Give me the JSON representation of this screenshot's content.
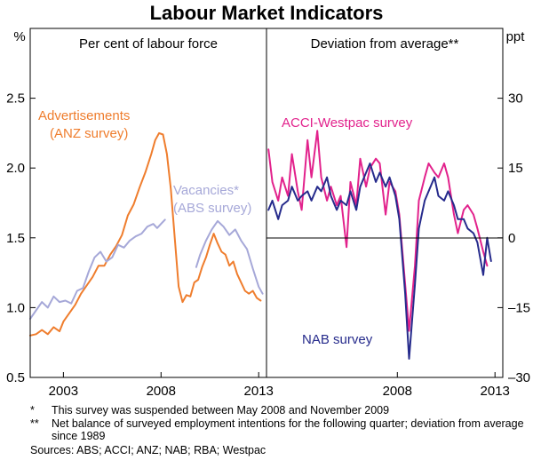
{
  "chart_data": {
    "type": "line",
    "title": "Labour Market Indicators",
    "left_panel": {
      "subtitle": "Per cent of labour force",
      "unit": "%",
      "ylim": [
        0.5,
        3.0
      ],
      "yticks": [
        "0.5",
        "1.0",
        "1.5",
        "2.0",
        "2.5"
      ],
      "xlim": [
        2001.3,
        2013.4
      ],
      "xticks": [
        2003,
        2008,
        2013
      ],
      "series": [
        {
          "name": "Advertisements (ANZ survey)",
          "label_lines": [
            "Advertisements",
            "(ANZ survey)"
          ],
          "color": "#ef7d2d",
          "segments": [
            [
              [
                2001.3,
                0.8
              ],
              [
                2001.6,
                0.81
              ],
              [
                2001.9,
                0.84
              ],
              [
                2002.2,
                0.81
              ],
              [
                2002.5,
                0.86
              ],
              [
                2002.8,
                0.83
              ],
              [
                2003.0,
                0.9
              ],
              [
                2003.3,
                0.96
              ],
              [
                2003.6,
                1.02
              ],
              [
                2003.9,
                1.1
              ],
              [
                2004.2,
                1.16
              ],
              [
                2004.5,
                1.22
              ],
              [
                2004.8,
                1.3
              ],
              [
                2005.1,
                1.3
              ],
              [
                2005.4,
                1.38
              ],
              [
                2005.7,
                1.44
              ],
              [
                2006.0,
                1.52
              ],
              [
                2006.3,
                1.66
              ],
              [
                2006.6,
                1.74
              ],
              [
                2006.9,
                1.86
              ],
              [
                2007.2,
                1.97
              ],
              [
                2007.5,
                2.1
              ],
              [
                2007.7,
                2.2
              ],
              [
                2007.9,
                2.25
              ],
              [
                2008.1,
                2.24
              ],
              [
                2008.3,
                2.1
              ],
              [
                2008.5,
                1.85
              ],
              [
                2008.7,
                1.5
              ],
              [
                2008.9,
                1.15
              ],
              [
                2009.1,
                1.04
              ],
              [
                2009.3,
                1.09
              ],
              [
                2009.5,
                1.08
              ],
              [
                2009.7,
                1.18
              ],
              [
                2009.9,
                1.2
              ],
              [
                2010.1,
                1.29
              ],
              [
                2010.3,
                1.36
              ],
              [
                2010.5,
                1.45
              ],
              [
                2010.7,
                1.53
              ],
              [
                2010.9,
                1.46
              ],
              [
                2011.1,
                1.4
              ],
              [
                2011.3,
                1.38
              ],
              [
                2011.5,
                1.3
              ],
              [
                2011.7,
                1.33
              ],
              [
                2011.9,
                1.24
              ],
              [
                2012.1,
                1.18
              ],
              [
                2012.3,
                1.12
              ],
              [
                2012.5,
                1.1
              ],
              [
                2012.7,
                1.12
              ],
              [
                2012.9,
                1.07
              ],
              [
                2013.1,
                1.05
              ]
            ]
          ]
        },
        {
          "name": "Vacancies* (ABS survey)",
          "label_lines": [
            "Vacancies*",
            "(ABS survey)"
          ],
          "color": "#a6a8d8",
          "segments": [
            [
              [
                2001.3,
                0.92
              ],
              [
                2001.6,
                0.98
              ],
              [
                2001.9,
                1.04
              ],
              [
                2002.2,
                1.0
              ],
              [
                2002.5,
                1.08
              ],
              [
                2002.8,
                1.04
              ],
              [
                2003.1,
                1.05
              ],
              [
                2003.4,
                1.03
              ],
              [
                2003.7,
                1.12
              ],
              [
                2004.0,
                1.14
              ],
              [
                2004.3,
                1.26
              ],
              [
                2004.6,
                1.36
              ],
              [
                2004.9,
                1.4
              ],
              [
                2005.2,
                1.33
              ],
              [
                2005.5,
                1.36
              ],
              [
                2005.8,
                1.45
              ],
              [
                2006.1,
                1.43
              ],
              [
                2006.4,
                1.48
              ],
              [
                2006.7,
                1.51
              ],
              [
                2007.0,
                1.53
              ],
              [
                2007.3,
                1.58
              ],
              [
                2007.6,
                1.6
              ],
              [
                2007.8,
                1.57
              ],
              [
                2008.0,
                1.6
              ],
              [
                2008.2,
                1.63
              ]
            ],
            [
              [
                2009.8,
                1.29
              ],
              [
                2010.0,
                1.38
              ],
              [
                2010.3,
                1.48
              ],
              [
                2010.6,
                1.56
              ],
              [
                2010.9,
                1.62
              ],
              [
                2011.2,
                1.58
              ],
              [
                2011.5,
                1.52
              ],
              [
                2011.8,
                1.56
              ],
              [
                2012.1,
                1.48
              ],
              [
                2012.4,
                1.42
              ],
              [
                2012.7,
                1.28
              ],
              [
                2013.0,
                1.15
              ],
              [
                2013.2,
                1.1
              ]
            ]
          ]
        }
      ]
    },
    "right_panel": {
      "subtitle": "Deviation from average**",
      "unit": "ppt",
      "ylim": [
        -30,
        45
      ],
      "yticks": [
        "-30",
        "-15",
        "0",
        "15",
        "30"
      ],
      "xlim": [
        2001.3,
        2013.4
      ],
      "xticks": [
        2008,
        2013
      ],
      "series": [
        {
          "name": "ACCI-Westpac survey",
          "label_lines": [
            "ACCI-Westpac survey"
          ],
          "color": "#e2228c",
          "segments": [
            [
              [
                2001.4,
                19
              ],
              [
                2001.6,
                12
              ],
              [
                2001.9,
                8
              ],
              [
                2002.1,
                13
              ],
              [
                2002.4,
                9
              ],
              [
                2002.6,
                18
              ],
              [
                2002.9,
                10
              ],
              [
                2003.1,
                6
              ],
              [
                2003.4,
                21
              ],
              [
                2003.6,
                13
              ],
              [
                2003.9,
                23
              ],
              [
                2004.1,
                13
              ],
              [
                2004.4,
                8
              ],
              [
                2004.6,
                11
              ],
              [
                2004.9,
                7
              ],
              [
                2005.1,
                9
              ],
              [
                2005.4,
                -2
              ],
              [
                2005.6,
                12
              ],
              [
                2005.9,
                7
              ],
              [
                2006.1,
                17
              ],
              [
                2006.4,
                11
              ],
              [
                2006.6,
                15
              ],
              [
                2006.9,
                17
              ],
              [
                2007.1,
                16
              ],
              [
                2007.4,
                5
              ],
              [
                2007.6,
                12
              ],
              [
                2007.9,
                10
              ],
              [
                2008.1,
                5
              ],
              [
                2008.4,
                -10
              ],
              [
                2008.6,
                -20
              ],
              [
                2008.9,
                -6
              ],
              [
                2009.1,
                8
              ],
              [
                2009.4,
                13
              ],
              [
                2009.6,
                16
              ],
              [
                2009.9,
                14
              ],
              [
                2010.1,
                13
              ],
              [
                2010.4,
                16
              ],
              [
                2010.6,
                13
              ],
              [
                2010.9,
                5
              ],
              [
                2011.1,
                1
              ],
              [
                2011.4,
                6
              ],
              [
                2011.6,
                7
              ],
              [
                2011.9,
                5
              ],
              [
                2012.1,
                2
              ],
              [
                2012.4,
                -3
              ],
              [
                2012.6,
                -6
              ]
            ]
          ]
        },
        {
          "name": "NAB survey",
          "label_lines": [
            "NAB survey"
          ],
          "color": "#262b8c",
          "segments": [
            [
              [
                2001.4,
                6
              ],
              [
                2001.6,
                8
              ],
              [
                2001.9,
                4
              ],
              [
                2002.1,
                7
              ],
              [
                2002.4,
                8
              ],
              [
                2002.6,
                11
              ],
              [
                2002.9,
                8
              ],
              [
                2003.1,
                9
              ],
              [
                2003.4,
                10
              ],
              [
                2003.6,
                8
              ],
              [
                2003.9,
                11
              ],
              [
                2004.1,
                10
              ],
              [
                2004.4,
                13
              ],
              [
                2004.6,
                9
              ],
              [
                2004.9,
                6
              ],
              [
                2005.1,
                8
              ],
              [
                2005.4,
                7
              ],
              [
                2005.6,
                10
              ],
              [
                2005.9,
                6
              ],
              [
                2006.1,
                11
              ],
              [
                2006.4,
                14
              ],
              [
                2006.6,
                16
              ],
              [
                2006.9,
                12
              ],
              [
                2007.1,
                14
              ],
              [
                2007.4,
                11
              ],
              [
                2007.6,
                13
              ],
              [
                2007.9,
                9
              ],
              [
                2008.1,
                4
              ],
              [
                2008.4,
                -12
              ],
              [
                2008.6,
                -26
              ],
              [
                2008.9,
                -10
              ],
              [
                2009.1,
                2
              ],
              [
                2009.4,
                8
              ],
              [
                2009.6,
                10
              ],
              [
                2009.9,
                13
              ],
              [
                2010.1,
                9
              ],
              [
                2010.4,
                8
              ],
              [
                2010.6,
                10
              ],
              [
                2010.9,
                7
              ],
              [
                2011.1,
                4
              ],
              [
                2011.4,
                4
              ],
              [
                2011.6,
                2
              ],
              [
                2011.9,
                1
              ],
              [
                2012.1,
                -1
              ],
              [
                2012.4,
                -8
              ],
              [
                2012.6,
                0
              ],
              [
                2012.8,
                -5
              ]
            ]
          ]
        }
      ]
    }
  },
  "notes": [
    {
      "mark": "*",
      "text": "This survey was suspended between May 2008 and November 2009"
    },
    {
      "mark": "**",
      "text": "Net balance of surveyed employment intentions for the following quarter; deviation from average since 1989"
    }
  ],
  "sources": "Sources: ABS; ACCI; ANZ; NAB; RBA; Westpac"
}
